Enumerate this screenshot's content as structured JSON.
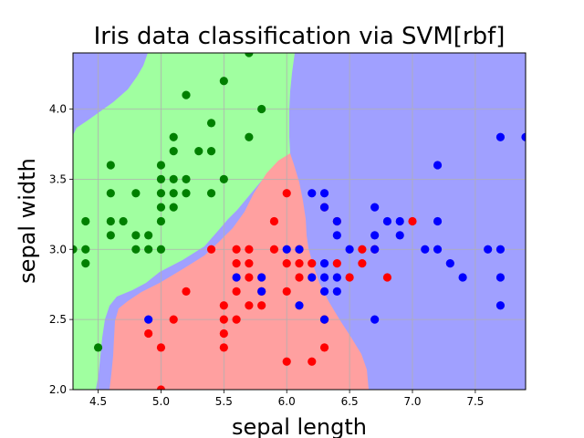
{
  "chart_data": {
    "type": "scatter",
    "title": "Iris data classification via SVM[rbf]",
    "xlabel": "sepal length",
    "ylabel": "sepal width",
    "xlim": [
      4.3,
      7.9
    ],
    "ylim": [
      2.0,
      4.4
    ],
    "grid": true,
    "x_ticks": [
      "4.5",
      "5.0",
      "5.5",
      "6.0",
      "6.5",
      "7.0",
      "7.5"
    ],
    "y_ticks": [
      "2.0",
      "2.5",
      "3.0",
      "3.5",
      "4.0"
    ],
    "region_colors": {
      "green": "#a0ffa0",
      "red": "#ffa0a0",
      "blue": "#a0a0ff"
    },
    "series": [
      {
        "color": "#008000",
        "points": [
          [
            4.3,
            3.0
          ],
          [
            4.4,
            2.9
          ],
          [
            4.4,
            3.0
          ],
          [
            4.4,
            3.2
          ],
          [
            4.5,
            2.3
          ],
          [
            4.6,
            3.1
          ],
          [
            4.6,
            3.2
          ],
          [
            4.6,
            3.4
          ],
          [
            4.6,
            3.6
          ],
          [
            4.7,
            3.2
          ],
          [
            4.8,
            3.0
          ],
          [
            4.8,
            3.1
          ],
          [
            4.8,
            3.4
          ],
          [
            4.9,
            3.0
          ],
          [
            4.9,
            3.1
          ],
          [
            5.0,
            3.0
          ],
          [
            5.0,
            3.2
          ],
          [
            5.0,
            3.3
          ],
          [
            5.0,
            3.4
          ],
          [
            5.0,
            3.5
          ],
          [
            5.0,
            3.6
          ],
          [
            5.1,
            3.3
          ],
          [
            5.1,
            3.4
          ],
          [
            5.1,
            3.5
          ],
          [
            5.1,
            3.7
          ],
          [
            5.1,
            3.8
          ],
          [
            5.2,
            3.4
          ],
          [
            5.2,
            3.5
          ],
          [
            5.2,
            4.1
          ],
          [
            5.3,
            3.7
          ],
          [
            5.4,
            3.4
          ],
          [
            5.4,
            3.7
          ],
          [
            5.4,
            3.9
          ],
          [
            5.5,
            3.5
          ],
          [
            5.5,
            4.2
          ],
          [
            5.7,
            3.8
          ],
          [
            5.7,
            4.4
          ],
          [
            5.8,
            4.0
          ]
        ]
      },
      {
        "color": "#ff0000",
        "points": [
          [
            4.9,
            2.4
          ],
          [
            5.0,
            2.0
          ],
          [
            5.0,
            2.3
          ],
          [
            5.1,
            2.5
          ],
          [
            5.2,
            2.7
          ],
          [
            5.4,
            3.0
          ],
          [
            5.5,
            2.3
          ],
          [
            5.5,
            2.4
          ],
          [
            5.5,
            2.5
          ],
          [
            5.5,
            2.6
          ],
          [
            5.6,
            2.5
          ],
          [
            5.6,
            2.7
          ],
          [
            5.6,
            2.9
          ],
          [
            5.6,
            3.0
          ],
          [
            5.7,
            2.6
          ],
          [
            5.7,
            2.8
          ],
          [
            5.7,
            2.9
          ],
          [
            5.7,
            3.0
          ],
          [
            5.8,
            2.6
          ],
          [
            5.8,
            2.7
          ],
          [
            5.9,
            3.0
          ],
          [
            5.9,
            3.2
          ],
          [
            6.0,
            2.2
          ],
          [
            6.0,
            2.7
          ],
          [
            6.0,
            2.9
          ],
          [
            6.0,
            3.4
          ],
          [
            6.1,
            2.8
          ],
          [
            6.1,
            2.9
          ],
          [
            6.1,
            3.0
          ],
          [
            6.2,
            2.2
          ],
          [
            6.2,
            2.9
          ],
          [
            6.3,
            2.3
          ],
          [
            6.3,
            2.5
          ],
          [
            6.3,
            3.3
          ],
          [
            6.4,
            2.9
          ],
          [
            6.4,
            3.2
          ],
          [
            6.5,
            2.8
          ],
          [
            6.6,
            2.9
          ],
          [
            6.6,
            3.0
          ],
          [
            6.7,
            3.0
          ],
          [
            6.8,
            2.8
          ],
          [
            7.0,
            3.2
          ]
        ]
      },
      {
        "color": "#0000ff",
        "points": [
          [
            4.9,
            2.5
          ],
          [
            5.6,
            2.8
          ],
          [
            5.8,
            2.7
          ],
          [
            5.8,
            2.8
          ],
          [
            6.0,
            3.0
          ],
          [
            6.1,
            2.6
          ],
          [
            6.1,
            3.0
          ],
          [
            6.2,
            2.8
          ],
          [
            6.2,
            3.4
          ],
          [
            6.3,
            2.5
          ],
          [
            6.3,
            2.7
          ],
          [
            6.3,
            2.8
          ],
          [
            6.3,
            2.9
          ],
          [
            6.3,
            3.3
          ],
          [
            6.3,
            3.4
          ],
          [
            6.4,
            2.7
          ],
          [
            6.4,
            2.8
          ],
          [
            6.4,
            3.1
          ],
          [
            6.4,
            3.2
          ],
          [
            6.5,
            3.0
          ],
          [
            6.7,
            2.5
          ],
          [
            6.7,
            3.0
          ],
          [
            6.7,
            3.1
          ],
          [
            6.7,
            3.3
          ],
          [
            6.8,
            3.2
          ],
          [
            6.9,
            3.1
          ],
          [
            6.9,
            3.2
          ],
          [
            7.1,
            3.0
          ],
          [
            7.2,
            3.0
          ],
          [
            7.2,
            3.2
          ],
          [
            7.2,
            3.6
          ],
          [
            7.3,
            2.9
          ],
          [
            7.4,
            2.8
          ],
          [
            7.6,
            3.0
          ],
          [
            7.7,
            2.6
          ],
          [
            7.7,
            2.8
          ],
          [
            7.7,
            3.0
          ],
          [
            7.7,
            3.8
          ],
          [
            7.9,
            3.8
          ]
        ]
      }
    ]
  }
}
